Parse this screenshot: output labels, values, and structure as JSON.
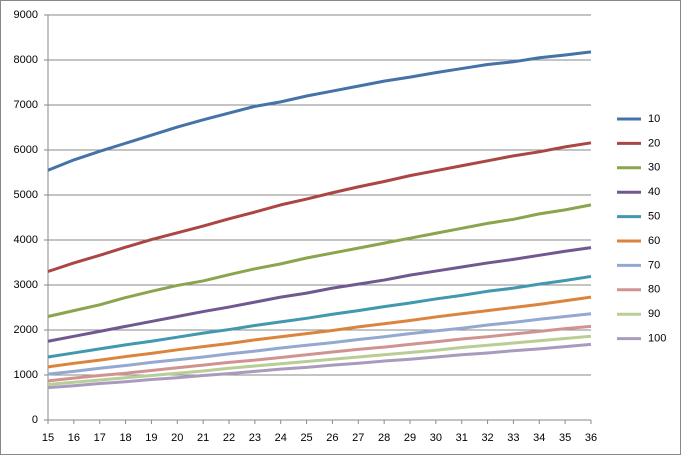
{
  "chart_data": {
    "type": "line",
    "x": [
      15,
      16,
      17,
      18,
      19,
      20,
      21,
      22,
      23,
      24,
      25,
      26,
      27,
      28,
      29,
      30,
      31,
      32,
      33,
      34,
      35,
      36
    ],
    "xlim": [
      15,
      36
    ],
    "ylim": [
      0,
      9000
    ],
    "yticks": [
      0,
      1000,
      2000,
      3000,
      4000,
      5000,
      6000,
      7000,
      8000,
      9000
    ],
    "grid": true,
    "legend": "right",
    "series": [
      {
        "name": "10",
        "color": "#4572A7",
        "values": [
          5550,
          5780,
          5970,
          6150,
          6330,
          6510,
          6670,
          6820,
          6970,
          7070,
          7200,
          7310,
          7420,
          7530,
          7620,
          7720,
          7810,
          7900,
          7960,
          8050,
          8110,
          8180
        ]
      },
      {
        "name": "20",
        "color": "#AA4643",
        "values": [
          3300,
          3490,
          3660,
          3840,
          4010,
          4160,
          4310,
          4470,
          4620,
          4780,
          4910,
          5050,
          5180,
          5300,
          5430,
          5540,
          5650,
          5760,
          5870,
          5960,
          6070,
          6160
        ]
      },
      {
        "name": "30",
        "color": "#89A54E",
        "values": [
          2300,
          2430,
          2560,
          2720,
          2860,
          2990,
          3090,
          3230,
          3360,
          3470,
          3600,
          3710,
          3820,
          3930,
          4040,
          4150,
          4260,
          4370,
          4460,
          4580,
          4670,
          4780
        ]
      },
      {
        "name": "40",
        "color": "#71588F",
        "values": [
          1750,
          1860,
          1970,
          2080,
          2190,
          2300,
          2410,
          2510,
          2620,
          2730,
          2820,
          2930,
          3020,
          3110,
          3220,
          3310,
          3400,
          3490,
          3570,
          3660,
          3750,
          3830
        ]
      },
      {
        "name": "50",
        "color": "#4198AF",
        "values": [
          1400,
          1490,
          1580,
          1670,
          1750,
          1840,
          1930,
          2010,
          2100,
          2180,
          2260,
          2350,
          2430,
          2520,
          2600,
          2690,
          2770,
          2860,
          2930,
          3020,
          3100,
          3190
        ]
      },
      {
        "name": "60",
        "color": "#DB843D",
        "values": [
          1180,
          1260,
          1330,
          1410,
          1480,
          1560,
          1630,
          1700,
          1780,
          1850,
          1920,
          1990,
          2070,
          2140,
          2210,
          2290,
          2360,
          2430,
          2500,
          2570,
          2650,
          2730
        ]
      },
      {
        "name": "70",
        "color": "#93A9CF",
        "values": [
          1020,
          1080,
          1150,
          1210,
          1280,
          1340,
          1400,
          1470,
          1530,
          1600,
          1660,
          1720,
          1790,
          1850,
          1920,
          1980,
          2040,
          2110,
          2170,
          2240,
          2300,
          2360
        ]
      },
      {
        "name": "80",
        "color": "#D19392",
        "values": [
          870,
          930,
          990,
          1040,
          1100,
          1160,
          1220,
          1280,
          1330,
          1390,
          1450,
          1510,
          1570,
          1620,
          1680,
          1740,
          1800,
          1850,
          1910,
          1970,
          2030,
          2080
        ]
      },
      {
        "name": "90",
        "color": "#B9CD96",
        "values": [
          790,
          840,
          890,
          940,
          990,
          1040,
          1090,
          1150,
          1200,
          1250,
          1300,
          1350,
          1400,
          1450,
          1500,
          1550,
          1610,
          1660,
          1710,
          1760,
          1810,
          1860
        ]
      },
      {
        "name": "100",
        "color": "#A99BBD",
        "values": [
          720,
          760,
          810,
          850,
          900,
          940,
          990,
          1030,
          1080,
          1130,
          1170,
          1220,
          1260,
          1310,
          1350,
          1400,
          1450,
          1490,
          1540,
          1580,
          1630,
          1680
        ]
      }
    ]
  }
}
